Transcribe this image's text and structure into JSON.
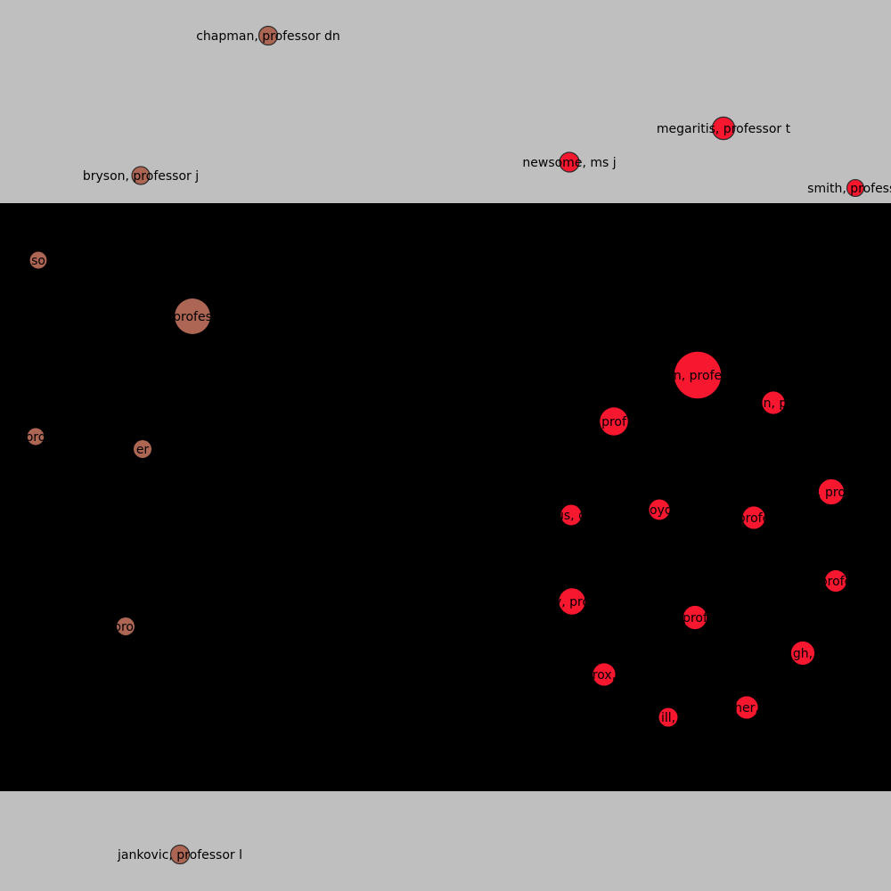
{
  "colors": {
    "background": "#bfbfbf",
    "panel": "#000000",
    "group_brown": "#ad6554",
    "group_red": "#f7172f",
    "outline": "#2b2b2b"
  },
  "network": {
    "nodes": [
      {
        "id": "chapman",
        "label": "chapman, professor dn",
        "group": "brown",
        "size": 1.0,
        "outlined": true
      },
      {
        "id": "megaritis",
        "label": "megaritis, professor t",
        "group": "red",
        "size": 1.2,
        "outlined": true
      },
      {
        "id": "newsome",
        "label": "newsome, ms j",
        "group": "red",
        "size": 1.05,
        "outlined": true
      },
      {
        "id": "bryson",
        "label": "bryson, professor j",
        "group": "brown",
        "size": 0.95,
        "outlined": true
      },
      {
        "id": "smith",
        "label": "smith, professo",
        "group": "red",
        "size": 0.9,
        "outlined": true
      },
      {
        "id": "jankovic",
        "label": "jankovic, professor l",
        "group": "brown",
        "size": 1.0,
        "outlined": true
      },
      {
        "id": "b1",
        "label": "so",
        "group": "brown",
        "size": 0.9,
        "outlined": false
      },
      {
        "id": "b2",
        "label": "profes",
        "group": "brown",
        "size": 1.9,
        "outlined": false
      },
      {
        "id": "b3",
        "label": "oro",
        "group": "brown",
        "size": 0.9,
        "outlined": false
      },
      {
        "id": "b4",
        "label": "er",
        "group": "brown",
        "size": 0.95,
        "outlined": false
      },
      {
        "id": "b5",
        "label": "prof",
        "group": "brown",
        "size": 0.95,
        "outlined": false
      },
      {
        "id": "r1",
        "label": "n, profe",
        "group": "red",
        "size": 2.5,
        "outlined": false
      },
      {
        "id": "r2",
        "label": "in, p",
        "group": "red",
        "size": 1.2,
        "outlined": false
      },
      {
        "id": "r3",
        "label": "prof",
        "group": "red",
        "size": 1.5,
        "outlined": false
      },
      {
        "id": "r4",
        "label": ", pro",
        "group": "red",
        "size": 1.35,
        "outlined": false
      },
      {
        "id": "r5",
        "label": "us, d",
        "group": "red",
        "size": 1.1,
        "outlined": false
      },
      {
        "id": "r6",
        "label": "loyd",
        "group": "red",
        "size": 1.1,
        "outlined": false
      },
      {
        "id": "r7",
        "label": "profe",
        "group": "red",
        "size": 1.2,
        "outlined": false
      },
      {
        "id": "r8",
        "label": "profe",
        "group": "red",
        "size": 1.15,
        "outlined": false
      },
      {
        "id": "r9",
        "label": "y, pro",
        "group": "red",
        "size": 1.4,
        "outlined": false
      },
      {
        "id": "r10",
        "label": "prof",
        "group": "red",
        "size": 1.25,
        "outlined": false
      },
      {
        "id": "r11",
        "label": "gh,",
        "group": "red",
        "size": 1.25,
        "outlined": false
      },
      {
        "id": "r12",
        "label": "rox,",
        "group": "red",
        "size": 1.2,
        "outlined": false
      },
      {
        "id": "r13",
        "label": "her,",
        "group": "red",
        "size": 1.2,
        "outlined": false
      },
      {
        "id": "r14",
        "label": "ill,",
        "group": "red",
        "size": 1.0,
        "outlined": false
      }
    ]
  }
}
